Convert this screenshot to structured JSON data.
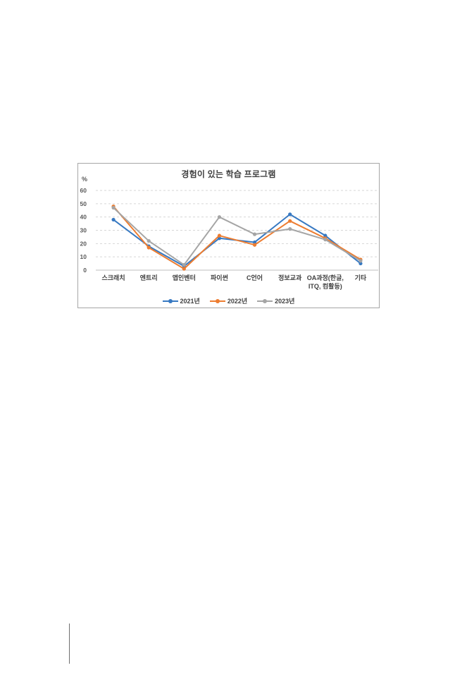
{
  "chart_data": {
    "type": "line",
    "title": "경험이 있는 학습 프로그램",
    "ylabel": "%",
    "xlabel": "",
    "ylim": [
      0,
      60
    ],
    "ytick_step": 10,
    "grid": true,
    "legend_position": "bottom",
    "categories": [
      "스크래치",
      "엔트리",
      "앱인벤터",
      "파이썬",
      "C언어",
      "정보교과",
      "OA과정(한글, ITQ, 컴활등)",
      "기타"
    ],
    "series": [
      {
        "name": "2021년",
        "color": "#3779c2",
        "values": [
          38,
          18,
          3,
          24,
          21,
          42,
          26,
          5
        ]
      },
      {
        "name": "2022년",
        "color": "#ed7d31",
        "values": [
          48,
          17,
          1,
          26,
          19,
          37,
          24,
          8
        ]
      },
      {
        "name": "2023년",
        "color": "#a5a5a5",
        "values": [
          47,
          22,
          4,
          40,
          27,
          31,
          23,
          7
        ]
      }
    ],
    "colors": {
      "grid": "#d6d6d6",
      "axis": "#bfbfbf",
      "tick_text": "#595959",
      "frame_border": "#a6a6a6"
    }
  }
}
